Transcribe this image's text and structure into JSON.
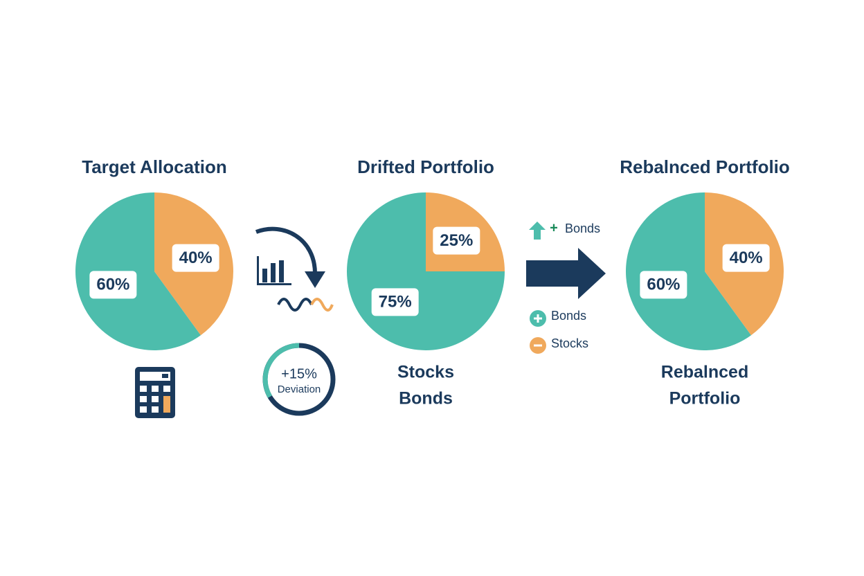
{
  "chart_data": [
    {
      "type": "pie",
      "title": "Target Allocation",
      "values": [
        60,
        40
      ],
      "value_labels": [
        "60%",
        "40%"
      ],
      "colors": [
        "#4dbdac",
        "#f0a95c"
      ]
    },
    {
      "type": "pie",
      "title": "Drifted Portfolio",
      "values": [
        75,
        25
      ],
      "value_labels": [
        "75%",
        "25%"
      ],
      "colors": [
        "#4dbdac",
        "#f0a95c"
      ],
      "caption": [
        "Stocks",
        "Bonds"
      ]
    },
    {
      "type": "pie",
      "title": "Rebalnced Portfolio",
      "values": [
        60,
        40
      ],
      "value_labels": [
        "60%",
        "40%"
      ],
      "colors": [
        "#4dbdac",
        "#f0a95c"
      ],
      "caption": [
        "Rebalnced",
        "Portfolio"
      ]
    }
  ],
  "deviation": {
    "value": "+15%",
    "label": "Deviation"
  },
  "actions": [
    "Bonds",
    "Bonds",
    "Stocks"
  ]
}
